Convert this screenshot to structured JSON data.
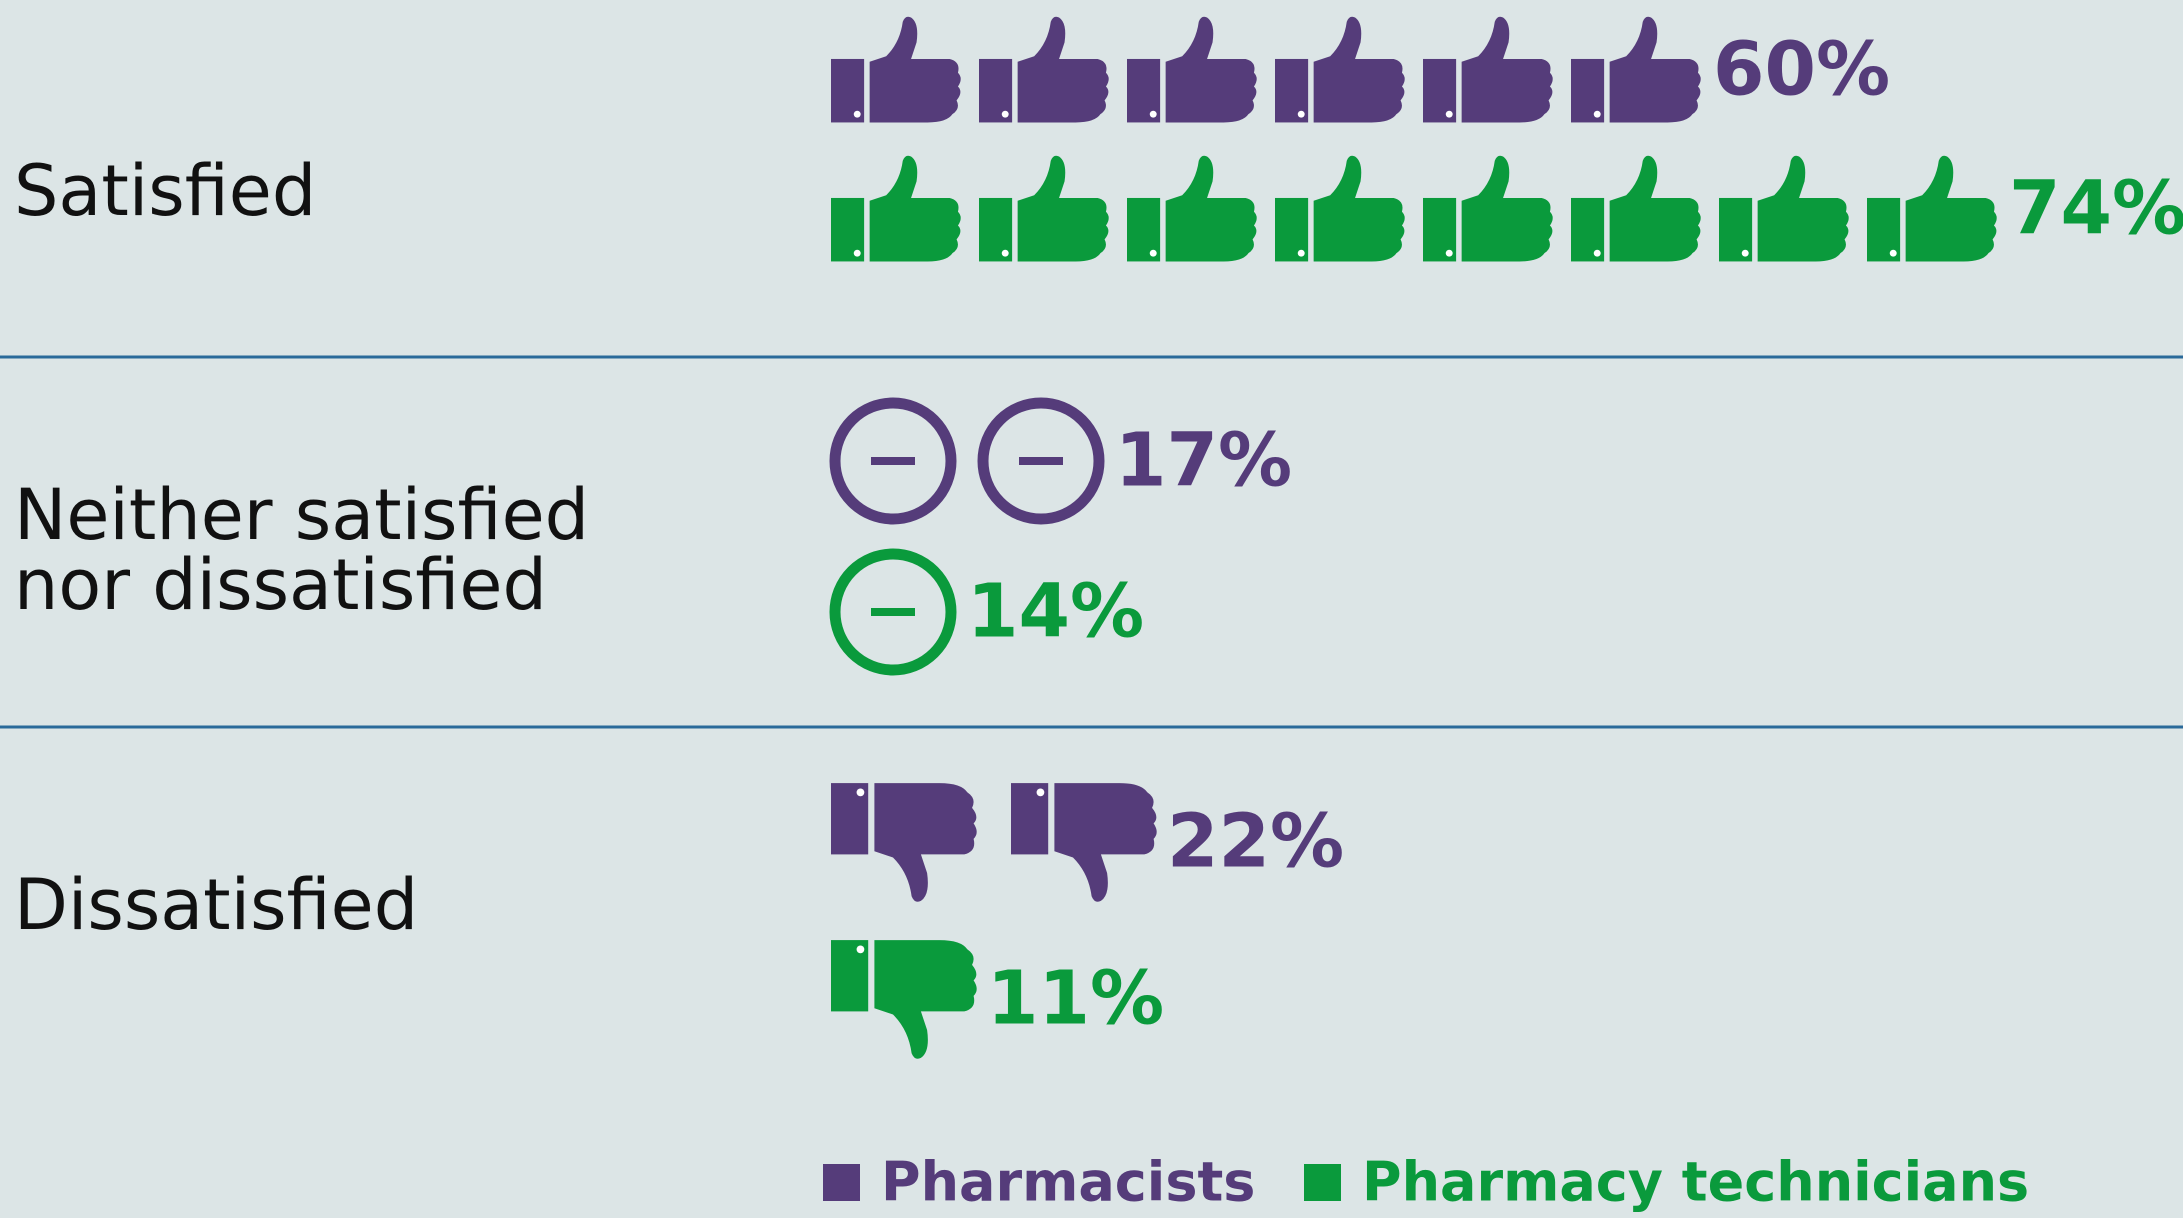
{
  "chart_data": {
    "type": "pictogram",
    "categories": [
      "Satisfied",
      "Neither satisfied nor dissatisfied",
      "Dissatisfied"
    ],
    "series": [
      {
        "name": "Pharmacists",
        "color": "#553c7a",
        "values": [
          60,
          17,
          22
        ],
        "value_labels": [
          "60%",
          "17%",
          "22%"
        ],
        "icons": [
          6,
          2,
          2
        ]
      },
      {
        "name": "Pharmacy technicians",
        "color": "#0a9a3c",
        "values": [
          74,
          14,
          11
        ],
        "value_labels": [
          "74%",
          "14%",
          "11%"
        ],
        "icons": [
          8,
          1,
          1
        ]
      }
    ]
  }
}
